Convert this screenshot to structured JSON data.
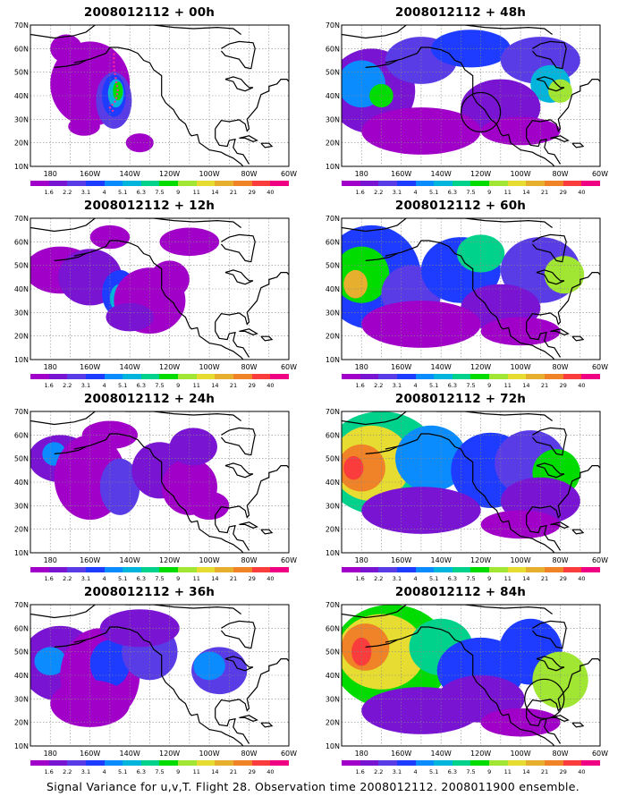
{
  "panels": [
    {
      "title": "2008012112 + 00h",
      "col": 0,
      "row": 0,
      "blobs": "p00"
    },
    {
      "title": "2008012112 + 48h",
      "col": 1,
      "row": 0,
      "blobs": "p48",
      "circle": [
        120,
        33
      ]
    },
    {
      "title": "2008012112 + 12h",
      "col": 0,
      "row": 1,
      "blobs": "p12"
    },
    {
      "title": "2008012112 + 60h",
      "col": 1,
      "row": 1,
      "blobs": "p60"
    },
    {
      "title": "2008012112 + 24h",
      "col": 0,
      "row": 2,
      "blobs": "p24"
    },
    {
      "title": "2008012112 + 72h",
      "col": 1,
      "row": 2,
      "blobs": "p72"
    },
    {
      "title": "2008012112 + 36h",
      "col": 0,
      "row": 3,
      "blobs": "p36"
    },
    {
      "title": "2008012112 + 84h",
      "col": 1,
      "row": 3,
      "blobs": "p84",
      "circle": [
        88,
        30
      ]
    }
  ],
  "axes": {
    "lat_labels": [
      "10N",
      "20N",
      "30N",
      "40N",
      "50N",
      "60N",
      "70N"
    ],
    "lon_labels": [
      "180",
      "160W",
      "140W",
      "120W",
      "100W",
      "80W",
      "60W"
    ]
  },
  "colorbar": {
    "labels": [
      "1.6",
      "2.2",
      "3.1",
      "4",
      "5.1",
      "6.3",
      "7.5",
      "9",
      "11",
      "14",
      "21",
      "29",
      "40"
    ],
    "colors": [
      "#a000c8",
      "#7814d2",
      "#5a3ce6",
      "#1e3cff",
      "#0a8cff",
      "#00b4dc",
      "#00d28c",
      "#00dc00",
      "#a0e632",
      "#e6dc32",
      "#e6af2d",
      "#f08228",
      "#fa3c3c",
      "#f00082"
    ]
  },
  "footer": "Signal Variance for u,v,T. Flight 28. Observation time 2008012112. 2008011900 ensemble."
}
